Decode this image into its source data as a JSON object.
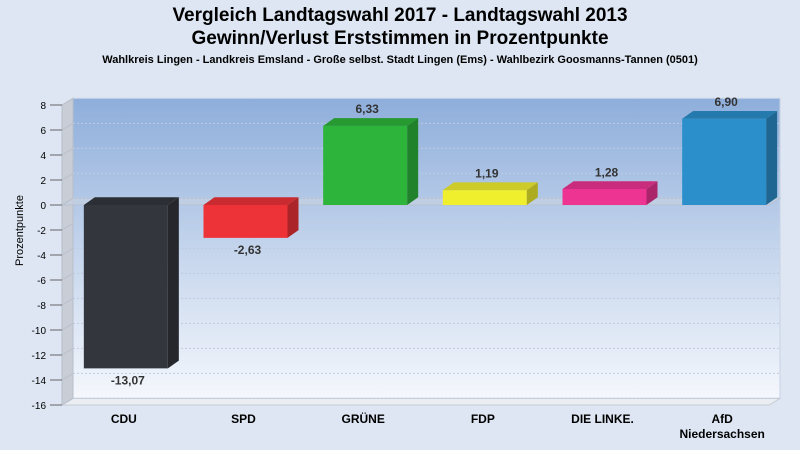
{
  "chart_data": {
    "type": "bar",
    "title": "Vergleich Landtagswahl 2017 - Landtagswahl 2013",
    "subtitle": "Gewinn/Verlust Erststimmen in Prozentpunkte",
    "caption": "Wahlkreis Lingen - Landkreis Emsland - Große selbst. Stadt Lingen (Ems) - Wahlbezirk Goosmanns-Tannen (0501)",
    "ylabel": "Prozentpunkte",
    "xlabel": "",
    "ylim": [
      -16,
      8
    ],
    "yticks": [
      -16,
      -14,
      -12,
      -10,
      -8,
      -6,
      -4,
      -2,
      0,
      2,
      4,
      6,
      8
    ],
    "grid": true,
    "categories": [
      "CDU",
      "SPD",
      "GRÜNE",
      "FDP",
      "DIE LINKE.",
      "AfD Niedersachsen"
    ],
    "category_lines": [
      [
        "CDU"
      ],
      [
        "SPD"
      ],
      [
        "GRÜNE"
      ],
      [
        "FDP"
      ],
      [
        "DIE LINKE."
      ],
      [
        "AfD",
        "Niedersachsen"
      ]
    ],
    "values": [
      -13.07,
      -2.63,
      6.33,
      1.19,
      1.28,
      6.9
    ],
    "value_labels": [
      "-13,07",
      "-2,63",
      "6,33",
      "1,19",
      "1,28",
      "6,90"
    ],
    "colors": [
      "#33363d",
      "#ee3338",
      "#2db43a",
      "#f0ef2e",
      "#ee3493",
      "#2b8fcb"
    ]
  }
}
